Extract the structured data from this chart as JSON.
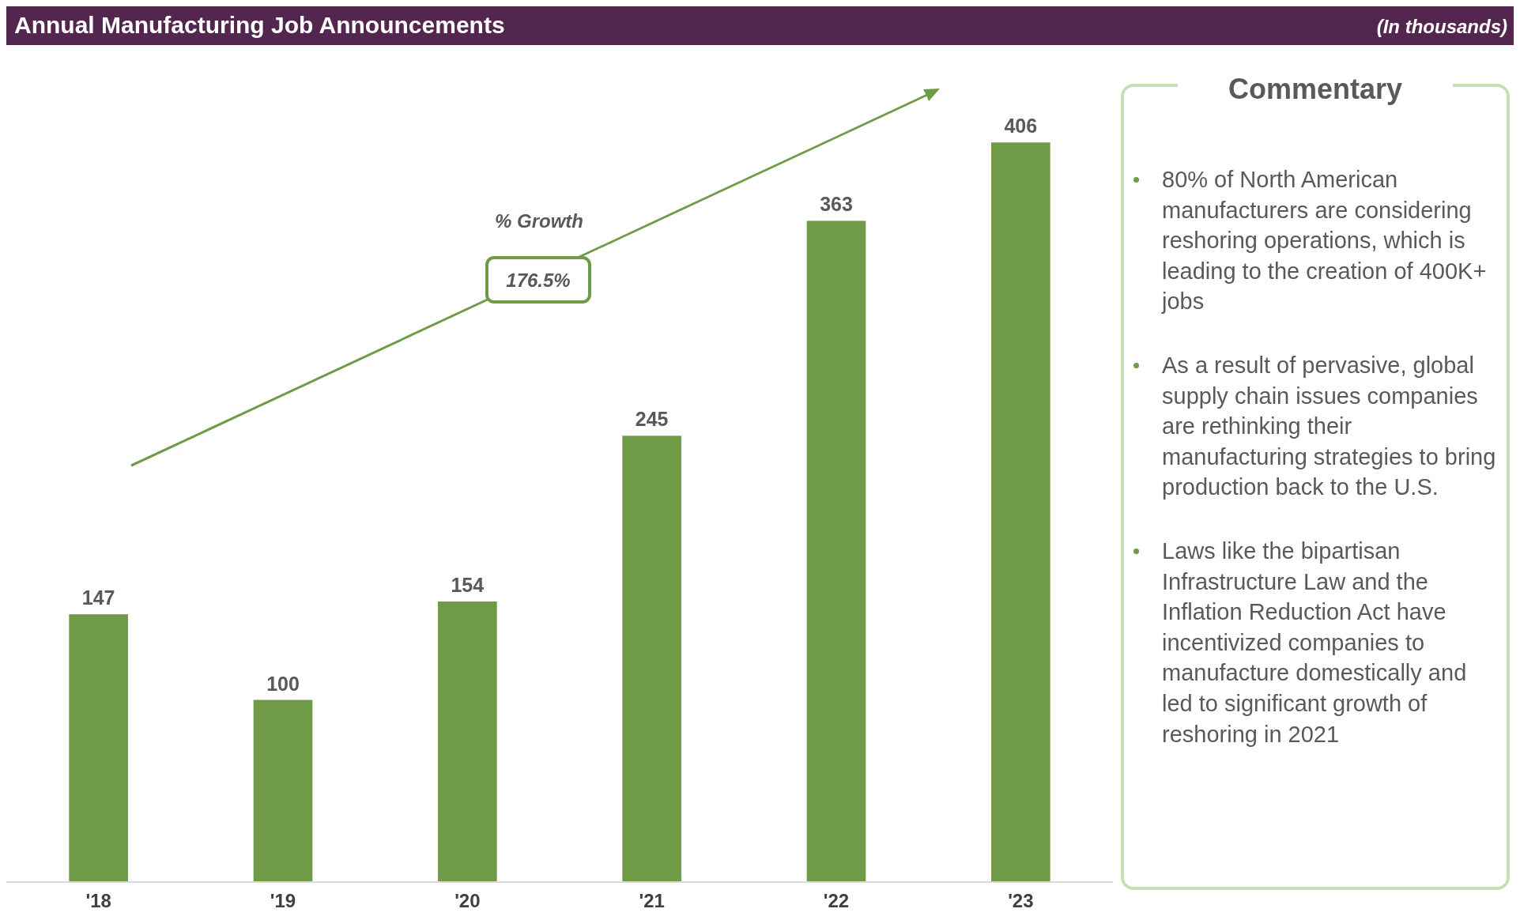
{
  "chart_data": {
    "type": "bar",
    "title": "Annual Manufacturing Job Announcements",
    "subtitle": "(In thousands)",
    "categories": [
      "'18",
      "'19",
      "'20",
      "'21",
      "'22",
      "'23"
    ],
    "values": [
      147,
      100,
      154,
      245,
      363,
      406
    ],
    "color": "#6f9a47",
    "data_labels": true,
    "annotations": [
      "% Growth",
      "176.5%",
      "Commentary",
      "80% of North American manufacturers are considering reshoring operations, which is leading to the creation of 400K+ jobs",
      "As a result of pervasive, global supply chain issues companies are rethinking their manufacturing strategies to bring production back to the U.S.",
      "Laws like the bipartisan Infrastructure Law and the Inflation Reduction Act have incentivized companies to manufacture domestically and led to significant growth of reshoring in 2021"
    ]
  }
}
